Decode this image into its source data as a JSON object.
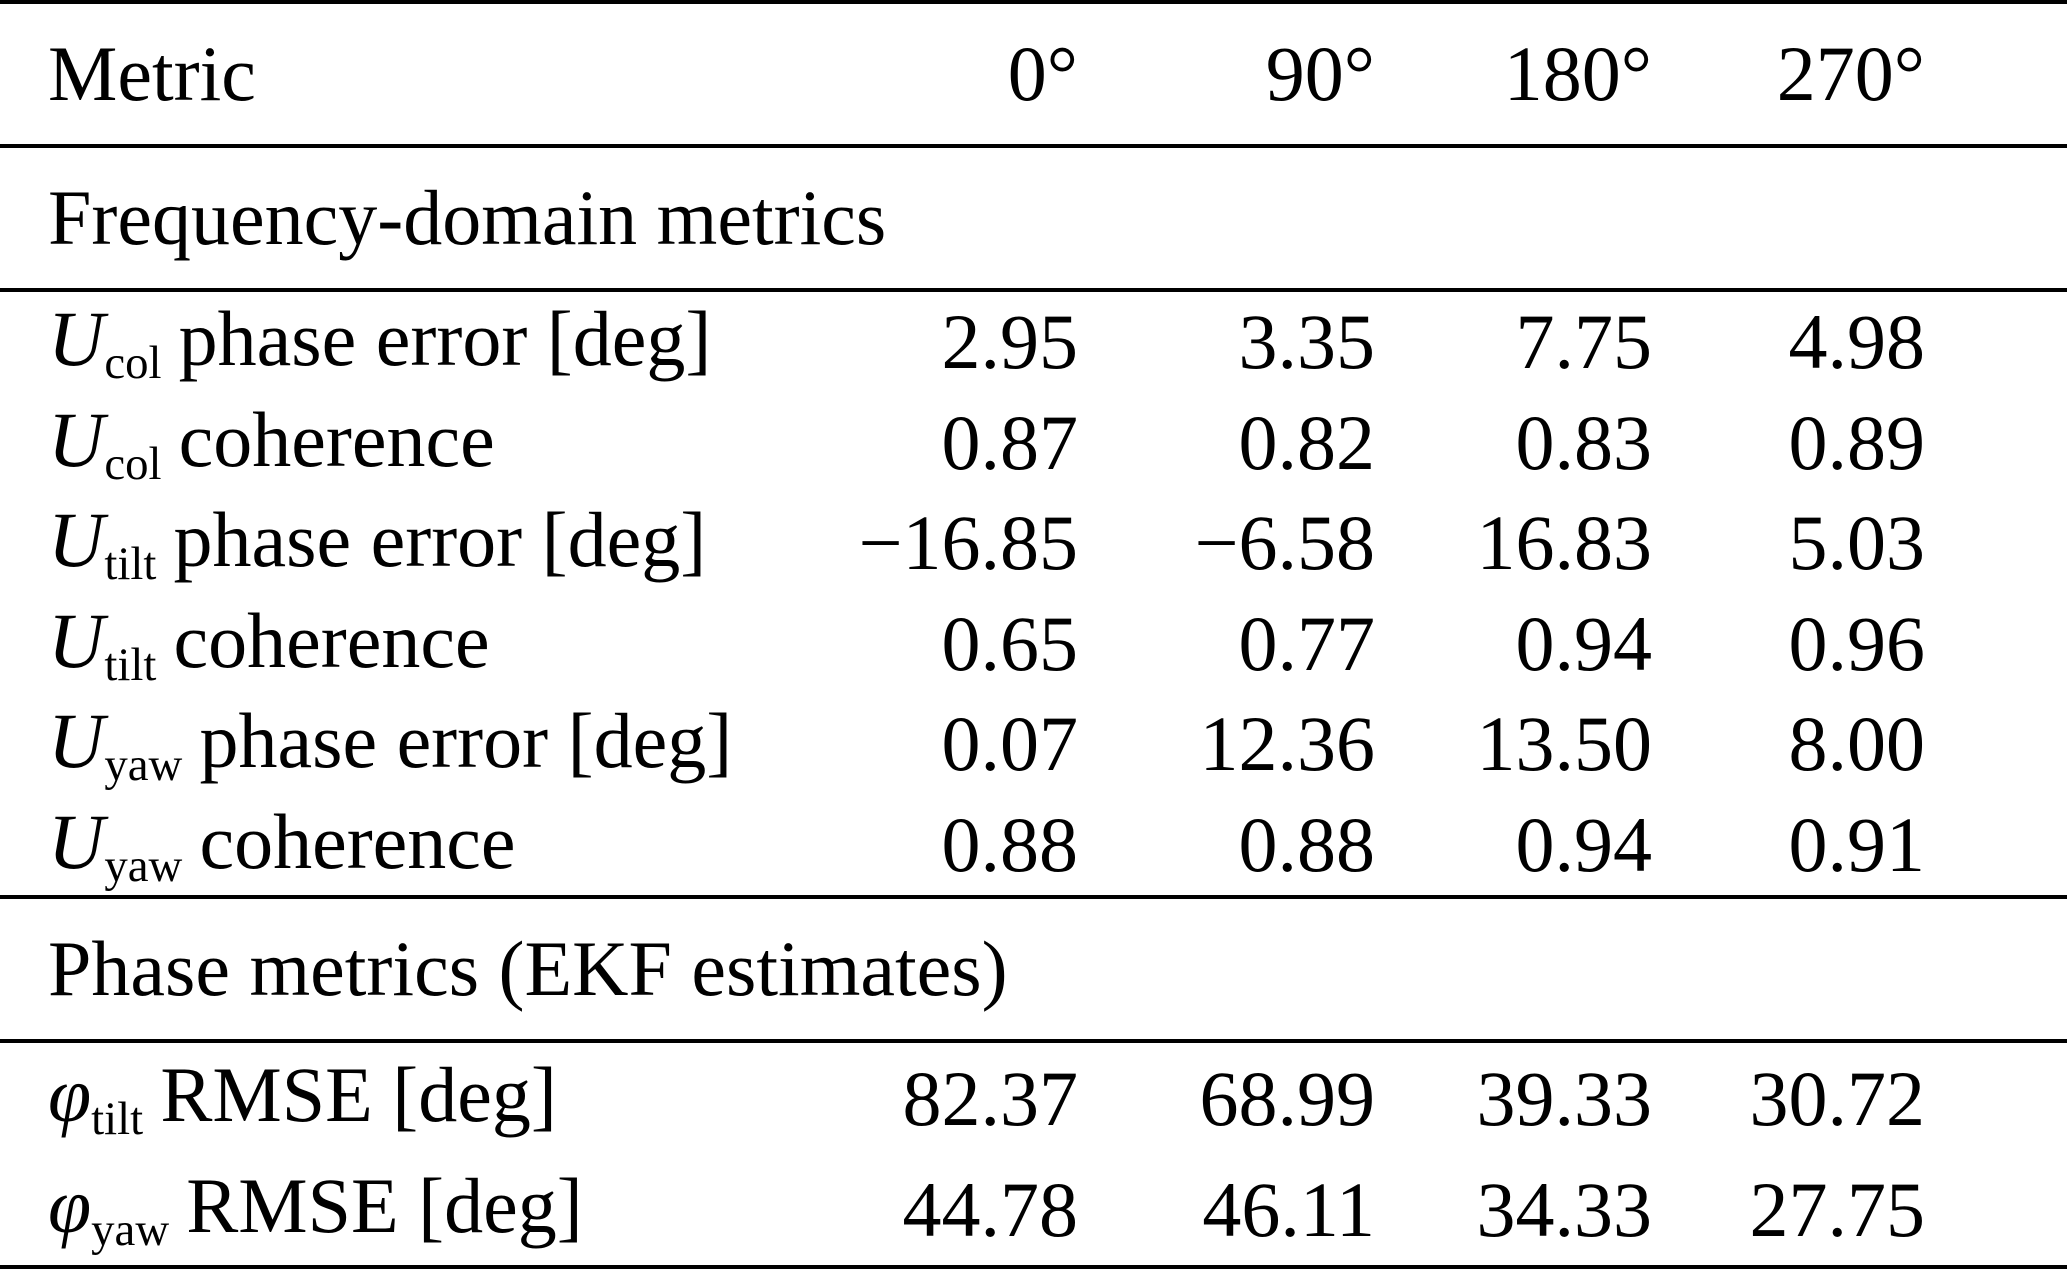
{
  "table": {
    "header": {
      "metric_label": "Metric",
      "columns": [
        "0°",
        "90°",
        "180°",
        "270°"
      ]
    },
    "sections": [
      {
        "title": "Frequency-domain metrics",
        "rows": [
          {
            "symbol": "U",
            "subscript": "col",
            "label": "phase error [deg]",
            "values": [
              "2.95",
              "3.35",
              "7.75",
              "4.98"
            ]
          },
          {
            "symbol": "U",
            "subscript": "col",
            "label": "coherence",
            "values": [
              "0.87",
              "0.82",
              "0.83",
              "0.89"
            ]
          },
          {
            "symbol": "U",
            "subscript": "tilt",
            "label": "phase error [deg]",
            "values": [
              "−16.85",
              "−6.58",
              "16.83",
              "5.03"
            ]
          },
          {
            "symbol": "U",
            "subscript": "tilt",
            "label": "coherence",
            "values": [
              "0.65",
              "0.77",
              "0.94",
              "0.96"
            ]
          },
          {
            "symbol": "U",
            "subscript": "yaw",
            "label": "phase error [deg]",
            "values": [
              "0.07",
              "12.36",
              "13.50",
              "8.00"
            ]
          },
          {
            "symbol": "U",
            "subscript": "yaw",
            "label": "coherence",
            "values": [
              "0.88",
              "0.88",
              "0.94",
              "0.91"
            ]
          }
        ]
      },
      {
        "title": "Phase metrics (EKF estimates)",
        "rows": [
          {
            "symbol": "φ",
            "subscript": "tilt",
            "label": "RMSE [deg]",
            "values": [
              "82.37",
              "68.99",
              "39.33",
              "30.72"
            ]
          },
          {
            "symbol": "φ",
            "subscript": "yaw",
            "label": "RMSE [deg]",
            "values": [
              "44.78",
              "46.11",
              "34.33",
              "27.75"
            ]
          }
        ]
      }
    ]
  }
}
